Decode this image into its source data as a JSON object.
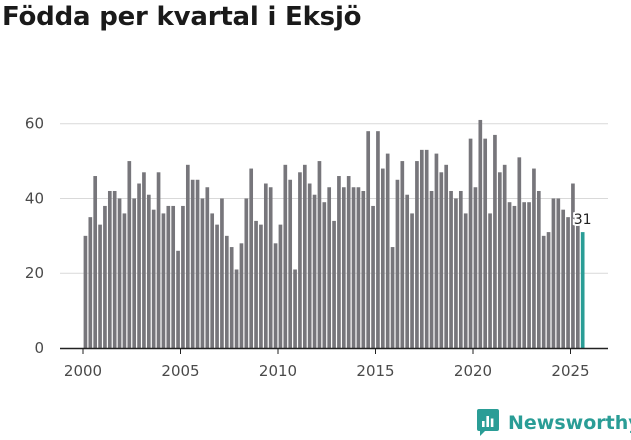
{
  "title": "Födda per kvartal i Eksjö",
  "brand": {
    "name": "Newsworthy"
  },
  "colors": {
    "bar": "#77767b",
    "highlight": "#2a9d96",
    "grid": "#d9d9d9",
    "axis": "#222222"
  },
  "chart_data": {
    "type": "bar",
    "title": "Födda per kvartal i Eksjö",
    "xlabel": "",
    "ylabel": "",
    "ylim": [
      0,
      65
    ],
    "yticks": [
      0,
      20,
      40,
      60
    ],
    "xticks": [
      "2000",
      "2005",
      "2010",
      "2015",
      "2020",
      "2025"
    ],
    "grid": true,
    "start": "2000 Q1",
    "end": "2025 Q3",
    "values": [
      30,
      35,
      46,
      33,
      38,
      42,
      42,
      40,
      36,
      50,
      40,
      44,
      47,
      41,
      37,
      47,
      36,
      38,
      38,
      26,
      38,
      49,
      45,
      45,
      40,
      43,
      36,
      33,
      40,
      30,
      27,
      21,
      28,
      40,
      48,
      34,
      33,
      44,
      43,
      28,
      33,
      49,
      45,
      21,
      47,
      49,
      44,
      41,
      50,
      39,
      43,
      34,
      46,
      43,
      46,
      43,
      43,
      42,
      58,
      38,
      58,
      48,
      52,
      27,
      45,
      50,
      41,
      36,
      50,
      53,
      53,
      42,
      52,
      47,
      49,
      42,
      40,
      42,
      36,
      56,
      43,
      61,
      56,
      36,
      57,
      47,
      49,
      39,
      38,
      51,
      39,
      39,
      48,
      42,
      30,
      31,
      40,
      40,
      37,
      35,
      44,
      34,
      31
    ],
    "highlight_last": true,
    "data_labels": [
      {
        "category": "2025 Q3",
        "value": 31,
        "text": "31"
      }
    ]
  }
}
